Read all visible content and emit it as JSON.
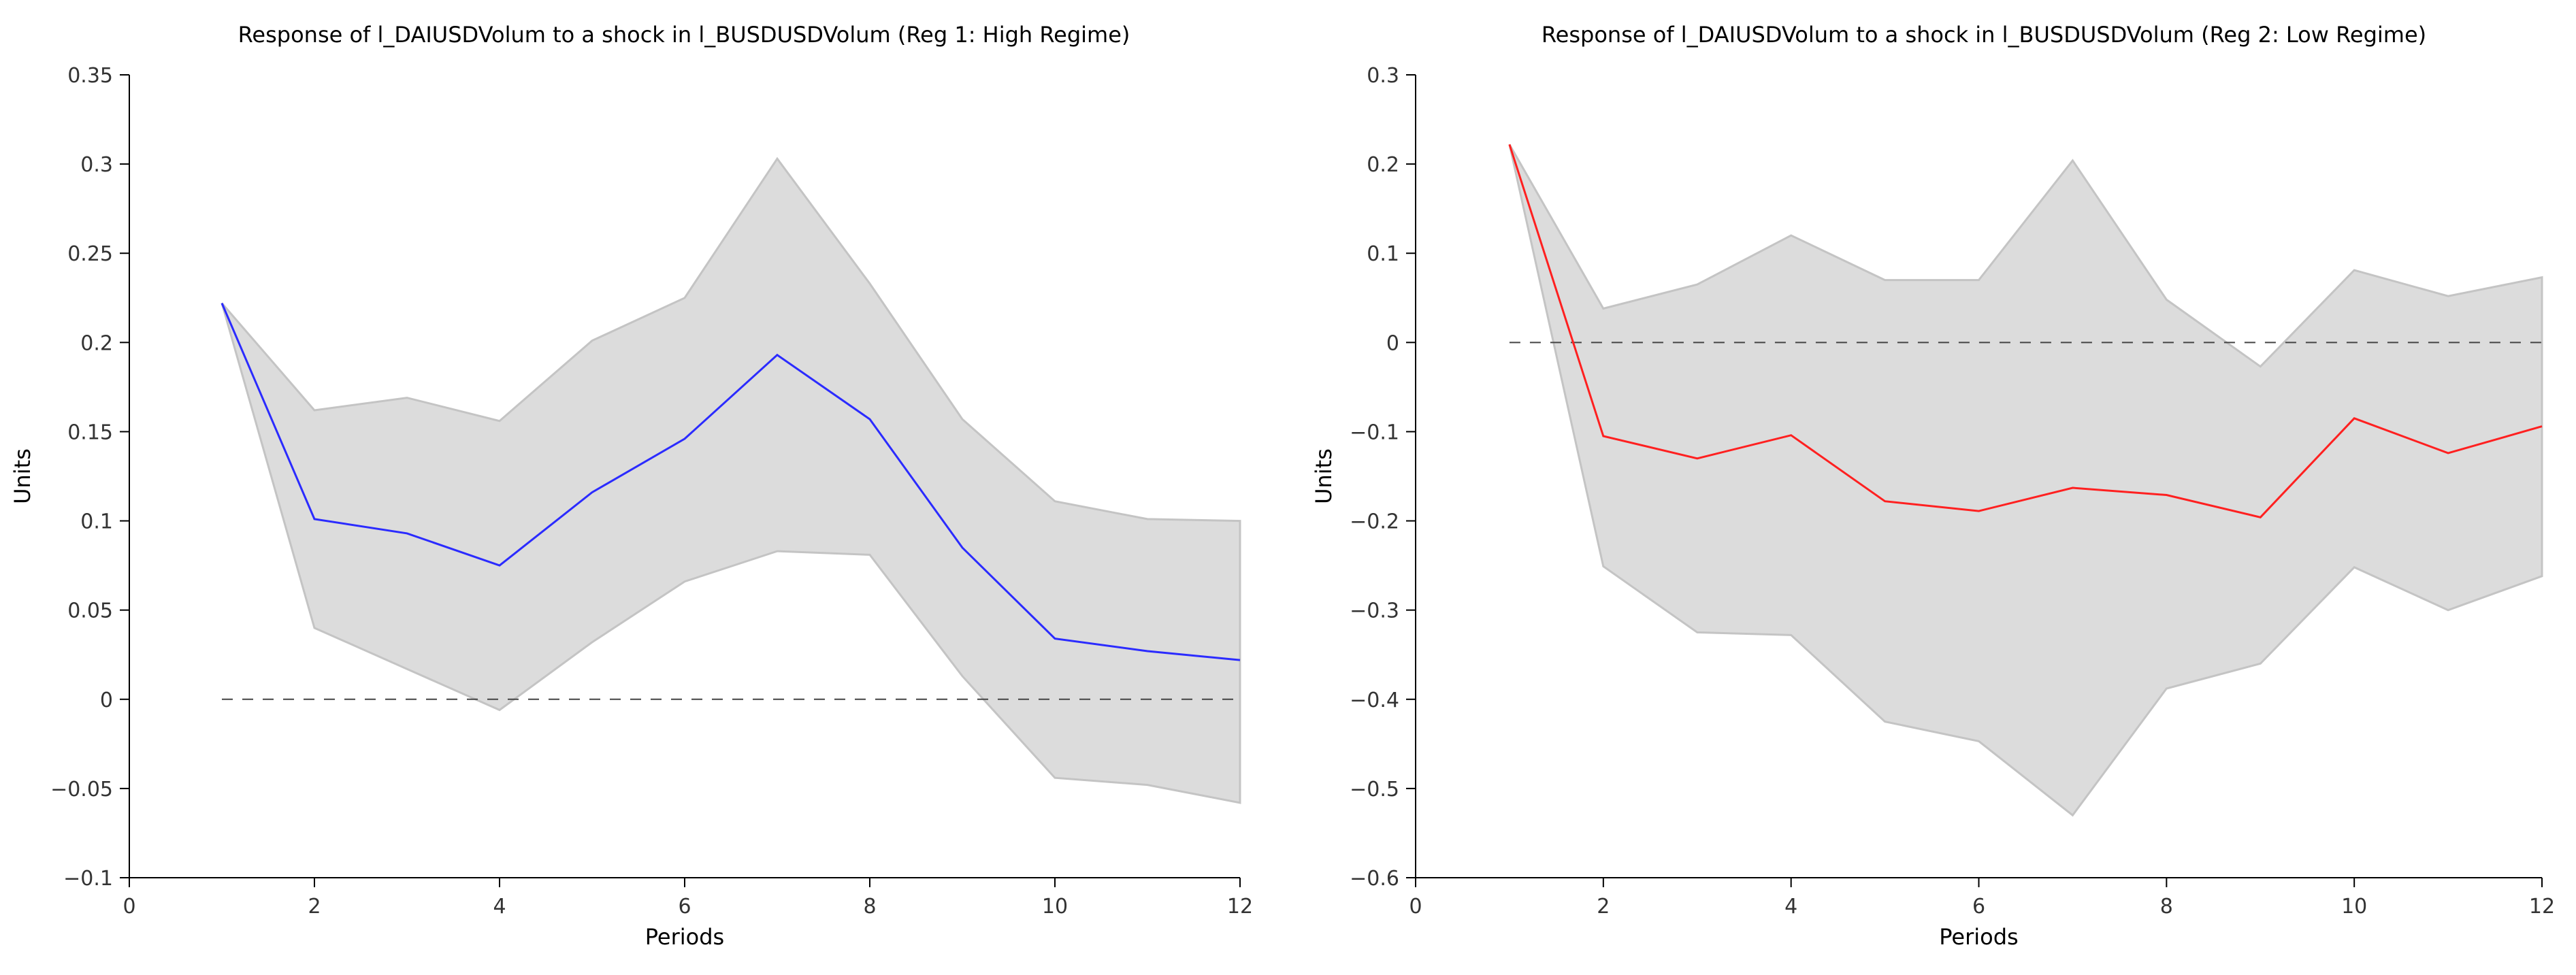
{
  "figure": {
    "colors": {
      "band_fill": "#dcdcdc",
      "band_edge": "#c4c4c4"
    }
  },
  "chart_data": [
    {
      "type": "line",
      "title": "Response of l_DAIUSDVolum to a shock in l_BUSDUSDVolum (Reg 1: High Regime)",
      "xlabel": "Periods",
      "ylabel": "Units",
      "xlim": [
        0,
        12
      ],
      "ylim": [
        -0.1,
        0.35
      ],
      "xticks": [
        0,
        2,
        4,
        6,
        8,
        10,
        12
      ],
      "xtick_labels": [
        "0",
        "2",
        "4",
        "6",
        "8",
        "10",
        "12"
      ],
      "yticks": [
        -0.1,
        -0.05,
        0,
        0.05,
        0.1,
        0.15,
        0.2,
        0.25,
        0.3,
        0.35
      ],
      "ytick_labels": [
        "−0.1",
        "−0.05",
        "0",
        "0.05",
        "0.1",
        "0.15",
        "0.2",
        "0.25",
        "0.3",
        "0.35"
      ],
      "x": [
        1,
        2,
        3,
        4,
        5,
        6,
        7,
        8,
        9,
        10,
        11,
        12
      ],
      "series": [
        {
          "name": "response",
          "color": "#2b2bff",
          "values": [
            0.222,
            0.101,
            0.093,
            0.075,
            0.116,
            0.146,
            0.193,
            0.157,
            0.085,
            0.034,
            0.027,
            0.022
          ]
        },
        {
          "name": "upper",
          "values": [
            0.222,
            0.162,
            0.169,
            0.156,
            0.201,
            0.225,
            0.303,
            0.233,
            0.157,
            0.111,
            0.101,
            0.1
          ]
        },
        {
          "name": "lower",
          "values": [
            0.222,
            0.04,
            0.017,
            -0.006,
            0.032,
            0.066,
            0.083,
            0.081,
            0.013,
            -0.044,
            -0.048,
            -0.058
          ]
        }
      ],
      "zero_line_x_range": [
        1,
        12
      ]
    },
    {
      "type": "line",
      "title": "Response of l_DAIUSDVolum to a shock in l_BUSDUSDVolum (Reg 2: Low Regime)",
      "xlabel": "Periods",
      "ylabel": "Units",
      "xlim": [
        0,
        12
      ],
      "ylim": [
        -0.6,
        0.3
      ],
      "xticks": [
        0,
        2,
        4,
        6,
        8,
        10,
        12
      ],
      "xtick_labels": [
        "0",
        "2",
        "4",
        "6",
        "8",
        "10",
        "12"
      ],
      "yticks": [
        -0.6,
        -0.5,
        -0.4,
        -0.3,
        -0.2,
        -0.1,
        0,
        0.1,
        0.2,
        0.3
      ],
      "ytick_labels": [
        "−0.6",
        "−0.5",
        "−0.4",
        "−0.3",
        "−0.2",
        "−0.1",
        "0",
        "0.1",
        "0.2",
        "0.3"
      ],
      "x": [
        1,
        2,
        3,
        4,
        5,
        6,
        7,
        8,
        9,
        10,
        11,
        12
      ],
      "series": [
        {
          "name": "response",
          "color": "#ff2020",
          "values": [
            0.222,
            -0.105,
            -0.13,
            -0.104,
            -0.178,
            -0.189,
            -0.163,
            -0.171,
            -0.196,
            -0.085,
            -0.124,
            -0.094
          ]
        },
        {
          "name": "upper",
          "values": [
            0.222,
            0.038,
            0.065,
            0.12,
            0.07,
            0.07,
            0.204,
            0.048,
            -0.027,
            0.081,
            0.052,
            0.073
          ]
        },
        {
          "name": "lower",
          "values": [
            0.222,
            -0.251,
            -0.325,
            -0.328,
            -0.425,
            -0.447,
            -0.53,
            -0.388,
            -0.36,
            -0.252,
            -0.3,
            -0.262
          ]
        }
      ],
      "zero_line_x_range": [
        1,
        12
      ]
    }
  ]
}
